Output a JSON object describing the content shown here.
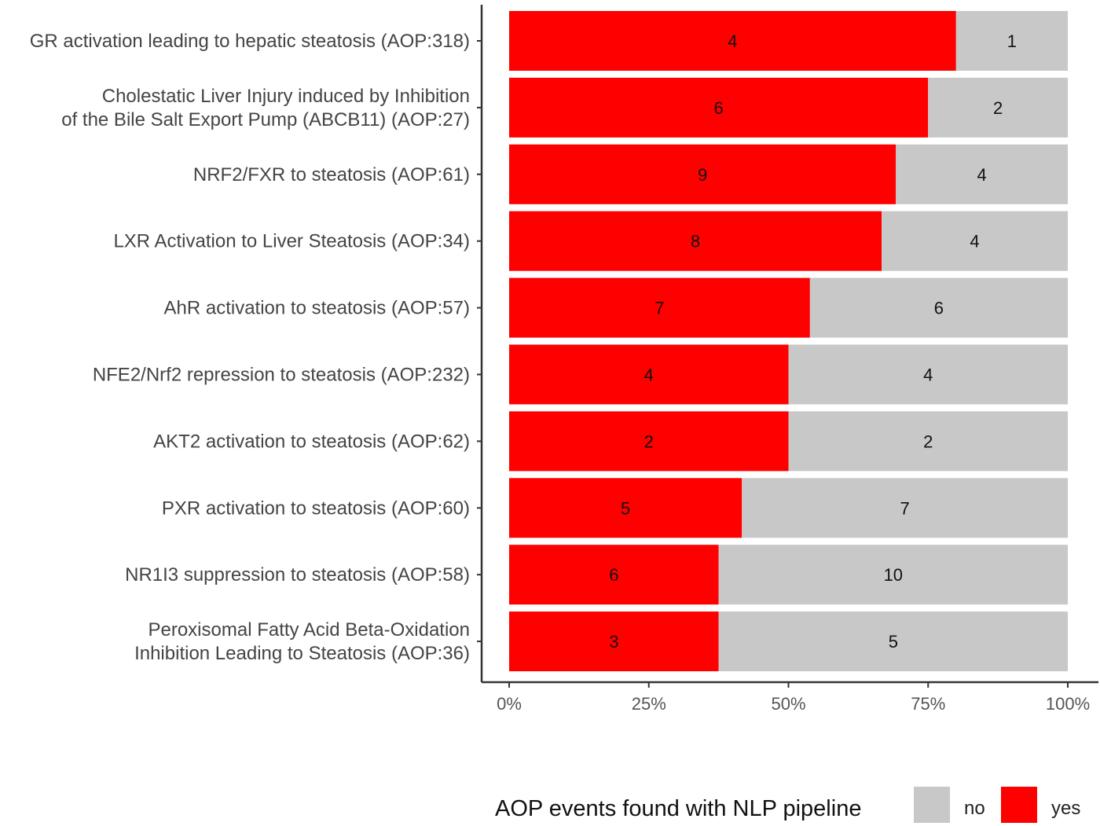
{
  "chart_data": {
    "type": "bar",
    "orientation": "horizontal",
    "stacked": "percent",
    "categories": [
      "GR activation leading to hepatic steatosis (AOP:318)",
      "Cholestatic Liver Injury induced by Inhibition\nof the Bile Salt Export Pump (ABCB11) (AOP:27)",
      "NRF2/FXR to steatosis (AOP:61)",
      "LXR Activation to Liver Steatosis (AOP:34)",
      "AhR activation to steatosis (AOP:57)",
      "NFE2/Nrf2 repression to steatosis (AOP:232)",
      "AKT2 activation to steatosis (AOP:62)",
      "PXR activation to steatosis (AOP:60)",
      "NR1I3 suppression to steatosis (AOP:58)",
      "Peroxisomal Fatty Acid Beta-Oxidation\nInhibition Leading to Steatosis (AOP:36)"
    ],
    "series": [
      {
        "name": "yes",
        "color": "#ff0000",
        "values": [
          4,
          6,
          9,
          8,
          7,
          4,
          2,
          5,
          6,
          3
        ]
      },
      {
        "name": "no",
        "color": "#c8c8c8",
        "values": [
          1,
          2,
          4,
          4,
          6,
          4,
          2,
          7,
          10,
          5
        ]
      }
    ],
    "x_ticks": [
      "0%",
      "25%",
      "50%",
      "75%",
      "100%"
    ],
    "xlim": [
      0,
      1
    ],
    "xlabel": "",
    "ylabel": "",
    "grid": false,
    "legend": {
      "title": "AOP events found with NLP pipeline",
      "position": "bottom",
      "entries": [
        "no",
        "yes"
      ]
    }
  }
}
